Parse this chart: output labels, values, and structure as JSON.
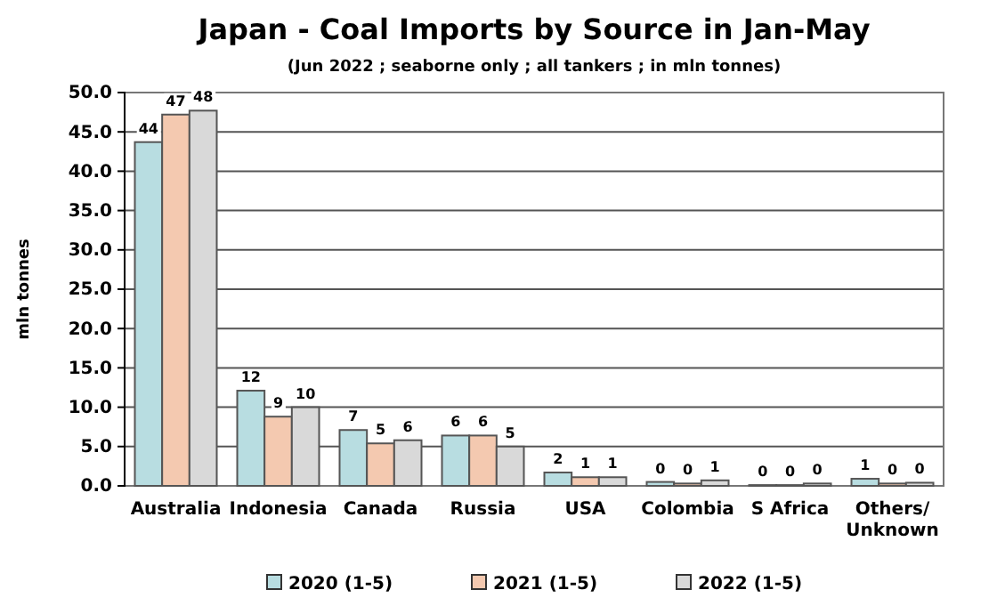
{
  "chart_data": {
    "type": "bar",
    "title": "Japan - Coal Imports by Source in Jan-May",
    "subtitle": "(Jun 2022 ; seaborne only ; all tankers ; in mln tonnes)",
    "ylabel": "mln tonnes",
    "categories": [
      "Australia",
      "Indonesia",
      "Canada",
      "Russia",
      "USA",
      "Colombia",
      "S Africa",
      "Others/\nUnknown"
    ],
    "series": [
      {
        "name": "2020 (1-5)",
        "color": "#b8dde1",
        "values": [
          43.7,
          12.1,
          7.1,
          6.4,
          1.7,
          0.5,
          0.1,
          0.9
        ],
        "value_labels": [
          "44",
          "12",
          "7",
          "6",
          "2",
          "0",
          "0",
          "1"
        ]
      },
      {
        "name": "2021 (1-5)",
        "color": "#f4c9b0",
        "values": [
          47.2,
          8.8,
          5.4,
          6.4,
          1.1,
          0.3,
          0.1,
          0.3
        ],
        "value_labels": [
          "47",
          "9",
          "5",
          "6",
          "1",
          "0",
          "0",
          "0"
        ]
      },
      {
        "name": "2022 (1-5)",
        "color": "#d9d9d9",
        "values": [
          47.7,
          10.0,
          5.8,
          5.0,
          1.1,
          0.7,
          0.3,
          0.4
        ],
        "value_labels": [
          "48",
          "10",
          "6",
          "5",
          "1",
          "1",
          "0",
          "0"
        ]
      }
    ],
    "ylim": [
      0,
      50
    ],
    "yticks": [
      {
        "value": 0,
        "label": "0.0"
      },
      {
        "value": 5,
        "label": "5.0"
      },
      {
        "value": 10,
        "label": "10.0"
      },
      {
        "value": 15,
        "label": "15.0"
      },
      {
        "value": 20,
        "label": "20.0"
      },
      {
        "value": 25,
        "label": "25.0"
      },
      {
        "value": 30,
        "label": "30.0"
      },
      {
        "value": 35,
        "label": "35.0"
      },
      {
        "value": 40,
        "label": "40.0"
      },
      {
        "value": 45,
        "label": "45.0"
      },
      {
        "value": 50,
        "label": "50.0"
      }
    ],
    "grid": "y",
    "legend": "bottom"
  }
}
